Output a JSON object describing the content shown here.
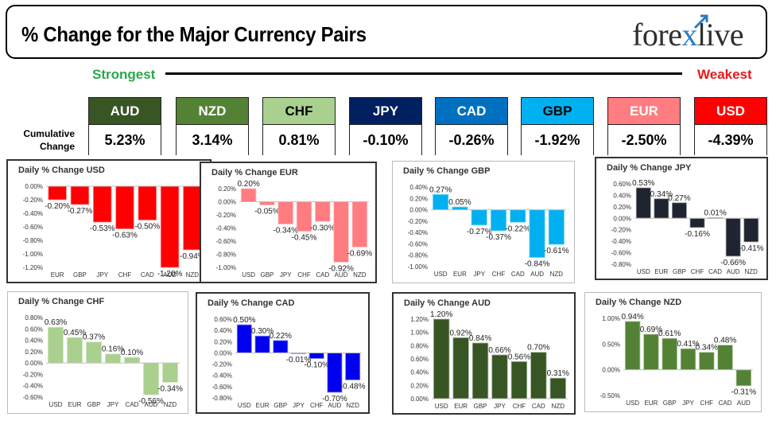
{
  "header": {
    "title": "% Change for the Major Currency Pairs",
    "logo_left": "fore",
    "logo_x": "x",
    "logo_right": "live"
  },
  "scale": {
    "strongest": "Strongest",
    "weakest": "Weakest"
  },
  "cumulative_label_line1": "Cumulative",
  "cumulative_label_line2": "Change",
  "currencies": [
    {
      "code": "AUD",
      "value": "5.23%",
      "bg": "#375623",
      "fg": "#ffffff"
    },
    {
      "code": "NZD",
      "value": "3.14%",
      "bg": "#548235",
      "fg": "#ffffff"
    },
    {
      "code": "CHF",
      "value": "0.81%",
      "bg": "#a9d08e",
      "fg": "#000000"
    },
    {
      "code": "JPY",
      "value": "-0.10%",
      "bg": "#002060",
      "fg": "#ffffff"
    },
    {
      "code": "CAD",
      "value": "-0.26%",
      "bg": "#0070c0",
      "fg": "#ffffff"
    },
    {
      "code": "GBP",
      "value": "-1.92%",
      "bg": "#00b0f0",
      "fg": "#000000"
    },
    {
      "code": "EUR",
      "value": "-2.50%",
      "bg": "#ff7c80",
      "fg": "#ffffff"
    },
    {
      "code": "USD",
      "value": "-4.39%",
      "bg": "#ff0000",
      "fg": "#ffffff"
    }
  ],
  "chart_data": [
    {
      "type": "bar",
      "title": "Daily % Change USD",
      "categories": [
        "EUR",
        "GBP",
        "JPY",
        "CHF",
        "CAD",
        "AUD",
        "NZD"
      ],
      "values": [
        -0.2,
        -0.27,
        -0.53,
        -0.63,
        -0.5,
        -1.2,
        -0.94
      ],
      "labels": [
        "-0.20%",
        "-0.27%",
        "-0.53%",
        "-0.63%",
        "-0.50%",
        "-1.20%",
        "-0.94%"
      ],
      "ylim": [
        -1.2,
        0.0
      ],
      "ticks": [
        -1.2,
        -1.0,
        -0.8,
        -0.6,
        -0.4,
        -0.2,
        0.0
      ],
      "tick_labels": [
        "-1.20%",
        "-1.00%",
        "-0.80%",
        "-0.60%",
        "-0.40%",
        "-0.20%",
        "0.00%"
      ],
      "color": "#ff0000"
    },
    {
      "type": "bar",
      "title": "Daily % Change EUR",
      "categories": [
        "USD",
        "GBP",
        "JPY",
        "CHF",
        "CAD",
        "AUD",
        "NZD"
      ],
      "values": [
        0.2,
        -0.05,
        -0.34,
        -0.45,
        -0.3,
        -0.92,
        -0.69
      ],
      "labels": [
        "0.20%",
        "-0.05%",
        "-0.34%",
        "-0.45%",
        "-0.30%",
        "-0.92%",
        "-0.69%"
      ],
      "ylim": [
        -1.0,
        0.2
      ],
      "ticks": [
        -1.0,
        -0.8,
        -0.6,
        -0.4,
        -0.2,
        0.0,
        0.2
      ],
      "tick_labels": [
        "-1.00%",
        "-0.80%",
        "-0.60%",
        "-0.40%",
        "-0.20%",
        "0.00%",
        "0.20%"
      ],
      "color": "#ff7c80"
    },
    {
      "type": "bar",
      "title": "Daily % Change GBP",
      "categories": [
        "USD",
        "EUR",
        "JPY",
        "CHF",
        "CAD",
        "AUD",
        "NZD"
      ],
      "values": [
        0.27,
        0.05,
        -0.27,
        -0.37,
        -0.22,
        -0.84,
        -0.61
      ],
      "labels": [
        "0.27%",
        "0.05%",
        "-0.27%",
        "-0.37%",
        "-0.22%",
        "-0.84%",
        "-0.61%"
      ],
      "ylim": [
        -1.0,
        0.4
      ],
      "ticks": [
        -1.0,
        -0.8,
        -0.6,
        -0.4,
        -0.2,
        0.0,
        0.2,
        0.4
      ],
      "tick_labels": [
        "-1.00%",
        "-0.80%",
        "-0.60%",
        "-0.40%",
        "-0.20%",
        "0.00%",
        "0.20%",
        "0.40%"
      ],
      "color": "#00b0f0"
    },
    {
      "type": "bar",
      "title": "Daily % Change JPY",
      "categories": [
        "USD",
        "EUR",
        "GBP",
        "CHF",
        "CAD",
        "AUD",
        "NZD"
      ],
      "values": [
        0.53,
        0.34,
        0.27,
        -0.16,
        0.01,
        -0.66,
        -0.41
      ],
      "labels": [
        "0.53%",
        "0.34%",
        "0.27%",
        "-0.16%",
        "0.01%",
        "-0.66%",
        "-0.41%"
      ],
      "ylim": [
        -0.8,
        0.6
      ],
      "ticks": [
        -0.8,
        -0.6,
        -0.4,
        -0.2,
        0.0,
        0.2,
        0.4,
        0.6
      ],
      "tick_labels": [
        "-0.80%",
        "-0.60%",
        "-0.40%",
        "-0.20%",
        "0.00%",
        "0.20%",
        "0.40%",
        "0.60%"
      ],
      "color": "#1f2430"
    },
    {
      "type": "bar",
      "title": "Daily % Change CHF",
      "categories": [
        "USD",
        "EUR",
        "GBP",
        "JPY",
        "CAD",
        "AUD",
        "NZD"
      ],
      "values": [
        0.63,
        0.45,
        0.37,
        0.16,
        0.1,
        -0.56,
        -0.34
      ],
      "labels": [
        "0.63%",
        "0.45%",
        "0.37%",
        "0.16%",
        "0.10%",
        "-0.56%",
        "-0.34%"
      ],
      "ylim": [
        -0.6,
        0.8
      ],
      "ticks": [
        -0.6,
        -0.4,
        -0.2,
        0.0,
        0.2,
        0.4,
        0.6,
        0.8
      ],
      "tick_labels": [
        "-0.60%",
        "-0.40%",
        "-0.20%",
        "0.00%",
        "0.20%",
        "0.40%",
        "0.60%",
        "0.80%"
      ],
      "color": "#a9d08e"
    },
    {
      "type": "bar",
      "title": "Daily % Change CAD",
      "categories": [
        "USD",
        "EUR",
        "GBP",
        "JPY",
        "CHF",
        "AUD",
        "NZD"
      ],
      "values": [
        0.5,
        0.3,
        0.22,
        -0.01,
        -0.1,
        -0.7,
        -0.48
      ],
      "labels": [
        "0.50%",
        "0.30%",
        "0.22%",
        "-0.01%",
        "-0.10%",
        "-0.70%",
        "-0.48%"
      ],
      "ylim": [
        -0.8,
        0.6
      ],
      "ticks": [
        -0.8,
        -0.6,
        -0.4,
        -0.2,
        0.0,
        0.2,
        0.4,
        0.6
      ],
      "tick_labels": [
        "-0.80%",
        "-0.60%",
        "-0.40%",
        "-0.20%",
        "0.00%",
        "0.20%",
        "0.40%",
        "0.60%"
      ],
      "color": "#0000ee"
    },
    {
      "type": "bar",
      "title": "Daily % Change AUD",
      "categories": [
        "USD",
        "EUR",
        "GBP",
        "JPY",
        "CHF",
        "CAD",
        "NZD"
      ],
      "values": [
        1.2,
        0.92,
        0.84,
        0.66,
        0.56,
        0.7,
        0.31
      ],
      "labels": [
        "1.20%",
        "0.92%",
        "0.84%",
        "0.66%",
        "0.56%",
        "0.70%",
        "0.31%"
      ],
      "ylim": [
        0.0,
        1.2
      ],
      "ticks": [
        0.0,
        0.2,
        0.4,
        0.6,
        0.8,
        1.0,
        1.2
      ],
      "tick_labels": [
        "0.00%",
        "0.20%",
        "0.40%",
        "0.60%",
        "0.80%",
        "1.00%",
        "1.20%"
      ],
      "color": "#375623"
    },
    {
      "type": "bar",
      "title": "Daily % Change NZD",
      "categories": [
        "USD",
        "EUR",
        "GBP",
        "JPY",
        "CHF",
        "CAD",
        "AUD"
      ],
      "values": [
        0.94,
        0.69,
        0.61,
        0.41,
        0.34,
        0.48,
        -0.31
      ],
      "labels": [
        "0.94%",
        "0.69%",
        "0.61%",
        "0.41%",
        "0.34%",
        "0.48%",
        "-0.31%"
      ],
      "ylim": [
        -0.5,
        1.0
      ],
      "ticks": [
        -0.5,
        0.0,
        0.5,
        1.0
      ],
      "tick_labels": [
        "-0.50%",
        "0.00%",
        "0.50%",
        "1.00%"
      ],
      "color": "#548235"
    }
  ]
}
